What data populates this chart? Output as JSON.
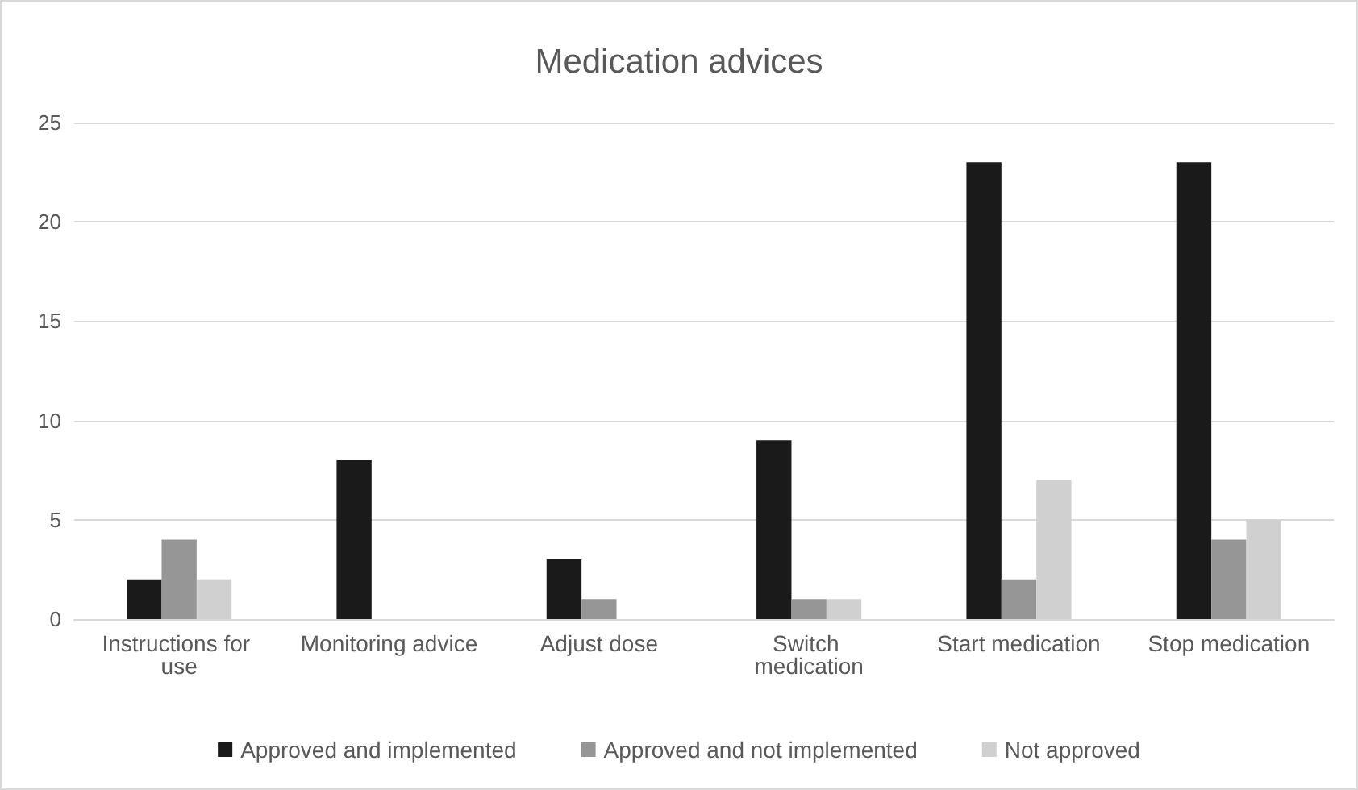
{
  "chart_data": {
    "type": "bar",
    "title": "Medication advices",
    "categories": [
      "Instructions for use",
      "Monitoring advice",
      "Adjust dose",
      "Switch medication",
      "Start medication",
      "Stop medication"
    ],
    "series": [
      {
        "name": "Approved and implemented",
        "color": "#1a1a1a",
        "values": [
          2,
          8,
          3,
          9,
          23,
          23
        ]
      },
      {
        "name": "Approved and not implemented",
        "color": "#969696",
        "values": [
          4,
          0,
          1,
          1,
          2,
          4
        ]
      },
      {
        "name": "Not approved",
        "color": "#d0d0d0",
        "values": [
          2,
          0,
          0,
          1,
          7,
          5
        ]
      }
    ],
    "ylim": [
      0,
      25
    ],
    "yticks": [
      0,
      5,
      10,
      15,
      20,
      25
    ],
    "grid": "y",
    "legend": "bottom"
  }
}
